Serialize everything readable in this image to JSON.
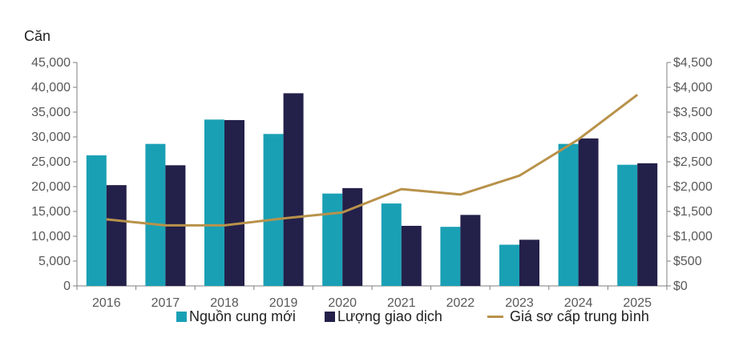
{
  "chart_data": {
    "type": "bar",
    "unit_label": "Căn",
    "categories": [
      "2016",
      "2017",
      "2018",
      "2019",
      "2020",
      "2021",
      "2022",
      "2023",
      "2024",
      "2025"
    ],
    "series": [
      {
        "name": "Nguồn cung mới",
        "kind": "bar",
        "axis": "left",
        "color": "#1aa0b5",
        "values": [
          26300,
          28600,
          33500,
          30600,
          18600,
          16600,
          11900,
          8300,
          28600,
          24400
        ]
      },
      {
        "name": "Lượng giao dịch",
        "kind": "bar",
        "axis": "left",
        "color": "#23204a",
        "values": [
          20300,
          24300,
          33400,
          38800,
          19700,
          12100,
          14300,
          9300,
          29700,
          24700
        ]
      },
      {
        "name": "Giá sơ cấp trung bình",
        "kind": "line",
        "axis": "right",
        "color": "#b8924a",
        "values": [
          1340,
          1220,
          1220,
          1360,
          1480,
          1950,
          1840,
          2220,
          2950,
          3850
        ]
      }
    ],
    "ylim_left": [
      0,
      45000
    ],
    "ylim_right": [
      0,
      4500
    ],
    "yticks_left": [
      "0",
      "5,000",
      "10,000",
      "15,000",
      "20,000",
      "25,000",
      "30,000",
      "35,000",
      "40,000",
      "45,000"
    ],
    "yticks_right": [
      "$0",
      "$500",
      "$1,000",
      "$1,500",
      "$2,000",
      "$2,500",
      "$3,000",
      "$3,500",
      "$4,000",
      "$4,500"
    ],
    "grid": false,
    "legend_position": "bottom"
  }
}
